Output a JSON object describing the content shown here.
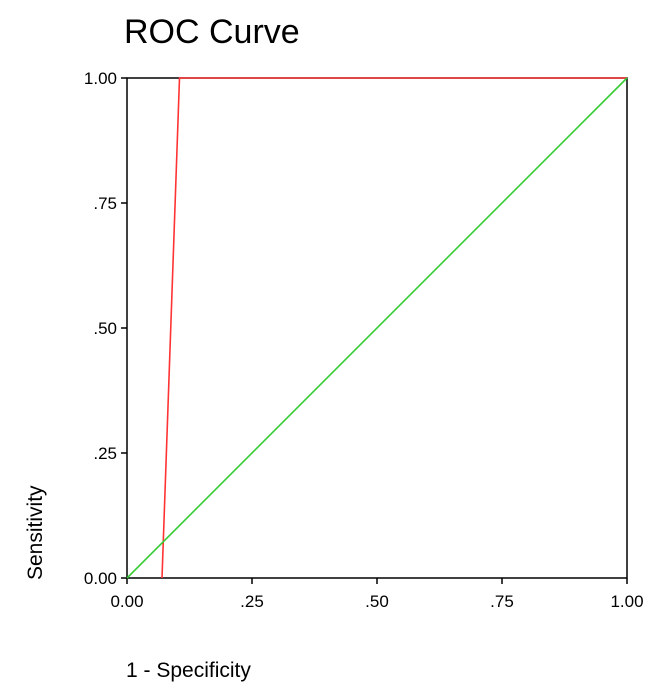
{
  "chart_data": {
    "type": "line",
    "title": "ROC Curve",
    "xlabel": "1 - Specificity",
    "ylabel": "Sensitivity",
    "xlim": [
      0,
      1
    ],
    "ylim": [
      0,
      1
    ],
    "x_ticks": [
      0,
      0.25,
      0.5,
      0.75,
      1
    ],
    "x_tick_labels": [
      "0.00",
      ".25",
      ".50",
      ".75",
      "1.00"
    ],
    "y_ticks": [
      0,
      0.25,
      0.5,
      0.75,
      1
    ],
    "y_tick_labels": [
      "0.00",
      ".25",
      ".50",
      ".75",
      "1.00"
    ],
    "grid": false,
    "legend": "none",
    "series": [
      {
        "color": "#ff3333",
        "points": [
          [
            0.07,
            0
          ],
          [
            0.105,
            1
          ],
          [
            1,
            1
          ]
        ]
      },
      {
        "color": "#33cc33",
        "points": [
          [
            0,
            0
          ],
          [
            1,
            1
          ]
        ]
      }
    ]
  }
}
